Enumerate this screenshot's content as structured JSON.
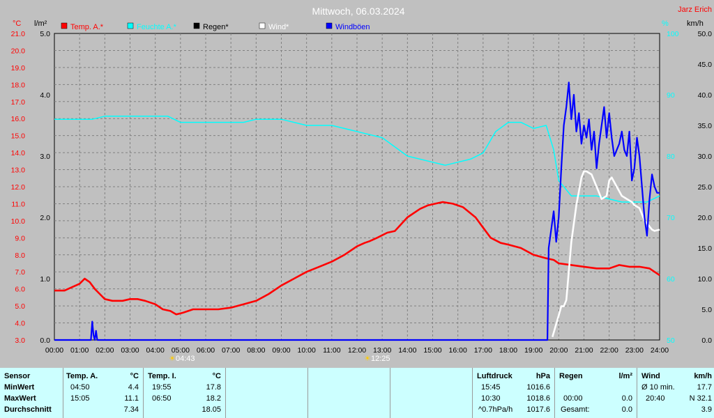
{
  "chart_data": {
    "type": "line",
    "title": "Mittwoch, 06.03.2024",
    "author": "Jarz Erich",
    "xlim": [
      0,
      24
    ],
    "x_ticks": [
      "00:00",
      "01:00",
      "02:00",
      "03:00",
      "04:00",
      "05:00",
      "06:00",
      "07:00",
      "08:00",
      "09:00",
      "10:00",
      "11:00",
      "12:00",
      "13:00",
      "14:00",
      "15:00",
      "16:00",
      "17:00",
      "18:00",
      "19:00",
      "20:00",
      "21:00",
      "22:00",
      "23:00",
      "24:00"
    ],
    "sunrise": "04:43",
    "sunset": "12:25",
    "axes": {
      "temp": {
        "unit": "°C",
        "ylim": [
          3,
          21
        ],
        "color": "#ff0000",
        "ticks": [
          "3.0",
          "4.0",
          "5.0",
          "6.0",
          "7.0",
          "8.0",
          "9.0",
          "10.0",
          "11.0",
          "12.0",
          "13.0",
          "14.0",
          "15.0",
          "16.0",
          "17.0",
          "18.0",
          "19.0",
          "20.0",
          "21.0"
        ]
      },
      "rain": {
        "unit": "l/m²",
        "ylim": [
          0,
          5
        ],
        "color": "#000000",
        "ticks": [
          "0.0",
          "1.0",
          "2.0",
          "3.0",
          "4.0",
          "5.0"
        ]
      },
      "humidity": {
        "unit": "%",
        "ylim": [
          50,
          100
        ],
        "color": "#00ffff",
        "ticks": [
          "50",
          "60",
          "70",
          "80",
          "90",
          "100"
        ]
      },
      "wind": {
        "unit": "km/h",
        "ylim": [
          0,
          50
        ],
        "color": "#000000",
        "ticks": [
          "0.0",
          "5.0",
          "10.0",
          "15.0",
          "20.0",
          "25.0",
          "30.0",
          "35.0",
          "40.0",
          "45.0",
          "50.0"
        ]
      }
    },
    "legend": [
      {
        "name": "Temp. A.*",
        "color": "#ff0000"
      },
      {
        "name": "Feuchte A.*",
        "color": "#00ffff"
      },
      {
        "name": "Regen*",
        "color": "#000000"
      },
      {
        "name": "Wind*",
        "color": "#ffffff"
      },
      {
        "name": "Windböen",
        "color": "#0000ff"
      }
    ],
    "series": [
      {
        "name": "Temp. A.*",
        "axis": "temp",
        "color": "#ff0000",
        "x": [
          0,
          0.4,
          0.7,
          1.0,
          1.2,
          1.4,
          1.6,
          1.8,
          2.0,
          2.3,
          2.7,
          3.0,
          3.3,
          3.6,
          4.0,
          4.3,
          4.6,
          4.83,
          5.1,
          5.5,
          6.0,
          6.5,
          7.0,
          7.5,
          8.0,
          8.5,
          9.0,
          9.5,
          10.0,
          10.5,
          11.0,
          11.5,
          12.0,
          12.3,
          12.5,
          12.8,
          13.2,
          13.5,
          14.0,
          14.5,
          14.8,
          15.1,
          15.4,
          15.8,
          16.2,
          16.7,
          17.0,
          17.3,
          17.7,
          18.0,
          18.5,
          19.0,
          19.5,
          19.8,
          20.0,
          20.5,
          21.0,
          21.5,
          22.0,
          22.4,
          22.8,
          23.2,
          23.6,
          24.0
        ],
        "y": [
          5.9,
          5.9,
          6.1,
          6.3,
          6.6,
          6.4,
          6.0,
          5.7,
          5.4,
          5.3,
          5.3,
          5.4,
          5.4,
          5.3,
          5.1,
          4.8,
          4.7,
          4.5,
          4.6,
          4.8,
          4.8,
          4.8,
          4.9,
          5.1,
          5.3,
          5.7,
          6.2,
          6.6,
          7.0,
          7.3,
          7.6,
          8.0,
          8.5,
          8.7,
          8.8,
          9.0,
          9.3,
          9.4,
          10.2,
          10.7,
          10.9,
          11.0,
          11.1,
          11.0,
          10.8,
          10.2,
          9.6,
          9.0,
          8.7,
          8.6,
          8.4,
          8.0,
          7.8,
          7.7,
          7.5,
          7.4,
          7.3,
          7.2,
          7.2,
          7.4,
          7.3,
          7.3,
          7.2,
          6.8
        ]
      },
      {
        "name": "Feuchte A.*",
        "axis": "humidity",
        "color": "#00ffff",
        "x": [
          0,
          0.5,
          1.0,
          1.5,
          2.0,
          3.0,
          4.0,
          4.5,
          5.0,
          6.0,
          7.0,
          7.5,
          8.0,
          9.0,
          10.0,
          11.0,
          12.0,
          13.0,
          14.0,
          15.0,
          15.5,
          16.0,
          16.5,
          17.0,
          17.5,
          18.0,
          18.5,
          19.0,
          19.5,
          19.8,
          20.0,
          20.5,
          21.0,
          21.5,
          22.0,
          22.5,
          23.0,
          23.5,
          24.0
        ],
        "y": [
          86.0,
          86.0,
          86.0,
          86.0,
          86.5,
          86.5,
          86.5,
          86.5,
          85.5,
          85.5,
          85.5,
          85.5,
          86.0,
          86.0,
          85.0,
          85.0,
          84.0,
          83.0,
          80.0,
          79.0,
          78.5,
          79.0,
          79.5,
          80.5,
          84.0,
          85.5,
          85.5,
          84.5,
          85.0,
          81.0,
          76.0,
          73.5,
          73.5,
          73.5,
          73.0,
          72.5,
          72.5,
          72.5,
          73.5
        ]
      },
      {
        "name": "Regen*",
        "axis": "rain",
        "color": "#000000",
        "x": [
          0,
          24
        ],
        "y": [
          0,
          0
        ]
      },
      {
        "name": "Wind*",
        "axis": "wind",
        "color": "#ffffff",
        "x": [
          19.75,
          20.0,
          20.1,
          20.2,
          20.3,
          20.5,
          20.7,
          20.9,
          21.0,
          21.1,
          21.3,
          21.5,
          21.6,
          21.7,
          21.9,
          22.0,
          22.1,
          22.3,
          22.5,
          22.7,
          22.9,
          23.0,
          23.2,
          23.4,
          23.5,
          23.7,
          23.8,
          24.0
        ],
        "y": [
          0.5,
          4.0,
          5.5,
          5.5,
          6.5,
          16.0,
          22.0,
          26.5,
          27.5,
          27.5,
          27.0,
          25.0,
          24.0,
          23.0,
          23.5,
          26.0,
          26.5,
          25.0,
          23.5,
          23.0,
          22.5,
          22.0,
          21.5,
          19.5,
          19.0,
          18.0,
          17.8,
          18.0
        ]
      },
      {
        "name": "Windböen",
        "axis": "wind",
        "color": "#0000ff",
        "x": [
          0,
          1.45,
          1.5,
          1.55,
          1.6,
          1.65,
          1.7,
          1.75,
          1.8,
          19.55,
          19.6,
          19.7,
          19.8,
          19.9,
          20.0,
          20.1,
          20.2,
          20.3,
          20.4,
          20.5,
          20.6,
          20.7,
          20.8,
          20.9,
          21.0,
          21.1,
          21.2,
          21.3,
          21.4,
          21.5,
          21.6,
          21.7,
          21.8,
          21.9,
          22.0,
          22.1,
          22.2,
          22.3,
          22.4,
          22.5,
          22.6,
          22.7,
          22.8,
          22.9,
          23.0,
          23.1,
          23.2,
          23.3,
          23.4,
          23.5,
          23.6,
          23.7,
          23.8,
          23.9,
          24.0
        ],
        "y": [
          0,
          0,
          3.0,
          0.8,
          0,
          1.5,
          0,
          0,
          0,
          0,
          15,
          18,
          21,
          16,
          20,
          28,
          35,
          38,
          42,
          36,
          40,
          34,
          37,
          32,
          35,
          33,
          36,
          31,
          34,
          28,
          32,
          35,
          38,
          33,
          37,
          33,
          30,
          31,
          32,
          34,
          31,
          30,
          34,
          26,
          28,
          33,
          30,
          25,
          20,
          17,
          23,
          27,
          25,
          24,
          24
        ]
      }
    ]
  },
  "stats": {
    "sensor": {
      "header": "Sensor",
      "rows": [
        "MinWert",
        "MaxWert",
        "Durchschnitt"
      ]
    },
    "temp_a": {
      "header": "Temp. A.",
      "unit": "°C",
      "times": [
        "04:50",
        "15:05",
        ""
      ],
      "values": [
        "4.4",
        "11.1",
        "7.34"
      ]
    },
    "temp_i": {
      "header": "Temp. I.",
      "unit": "°C",
      "times": [
        "19:55",
        "06:50",
        ""
      ],
      "values": [
        "17.8",
        "18.2",
        "18.05"
      ]
    },
    "pressure": {
      "header": "Luftdruck",
      "unit": "hPa",
      "times": [
        "15:45",
        "10:30",
        "^0.7hPa/h"
      ],
      "values": [
        "1016.6",
        "1018.6",
        "1017.6"
      ]
    },
    "rain": {
      "header": "Regen",
      "unit": "l/m²",
      "times": [
        "",
        "00:00",
        "Gesamt:"
      ],
      "values": [
        "",
        "0.0",
        "0.0"
      ]
    },
    "wind": {
      "header": "Wind",
      "unit": "km/h",
      "times": [
        "Ø 10 min.",
        "20:40",
        ""
      ],
      "values": [
        "17.7",
        "N 32.1",
        "3.9"
      ]
    }
  }
}
